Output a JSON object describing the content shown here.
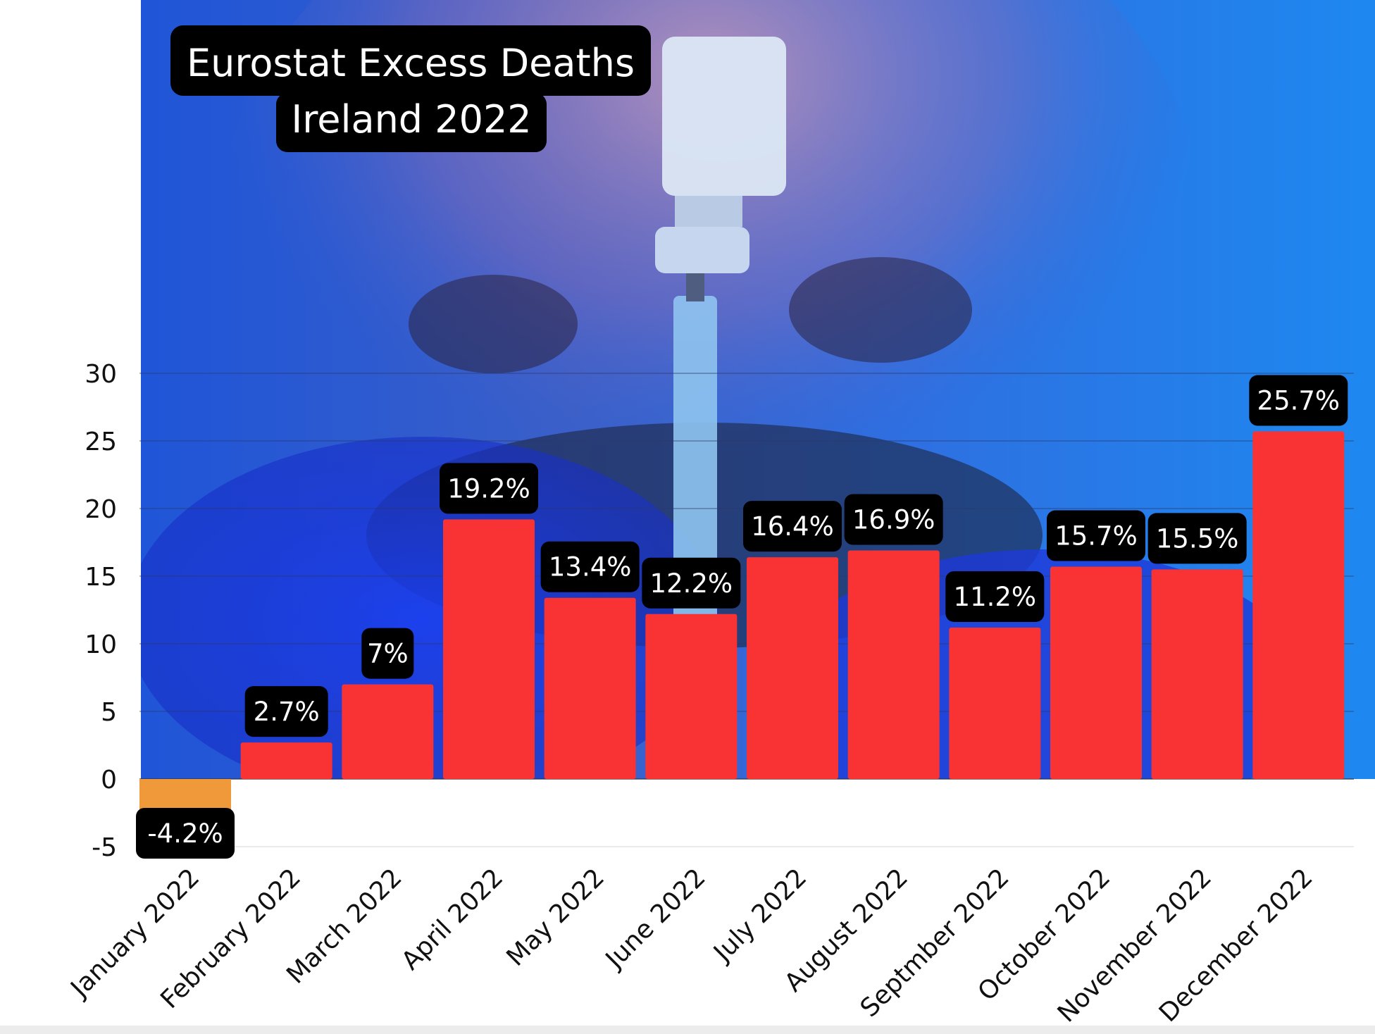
{
  "chart_data": {
    "type": "bar",
    "title_lines": [
      "Eurostat Excess Deaths",
      "Ireland 2022"
    ],
    "categories": [
      "January 2022",
      "February 2022",
      "March 2022",
      "April 2022",
      "May 2022",
      "June 2022",
      "July 2022",
      "August 2022",
      "Septmber 2022",
      "October 2022",
      "November 2022",
      "December 2022"
    ],
    "values": [
      -4.2,
      2.7,
      7,
      19.2,
      13.4,
      12.2,
      16.4,
      16.9,
      11.2,
      15.7,
      15.5,
      25.7
    ],
    "data_labels": [
      "-4.2%",
      "2.7%",
      "7%",
      "19.2%",
      "13.4%",
      "12.2%",
      "16.4%",
      "16.9%",
      "11.2%",
      "15.7%",
      "15.5%",
      "25.7%"
    ],
    "yticks": [
      -5,
      0,
      5,
      10,
      15,
      20,
      25,
      30
    ],
    "ylim": [
      -5,
      30
    ],
    "xlabel": "",
    "ylabel": "",
    "colors": {
      "positive": "#f93233",
      "negative": "#f0993a",
      "label_bg": "#000000",
      "label_text": "#ffffff"
    }
  }
}
